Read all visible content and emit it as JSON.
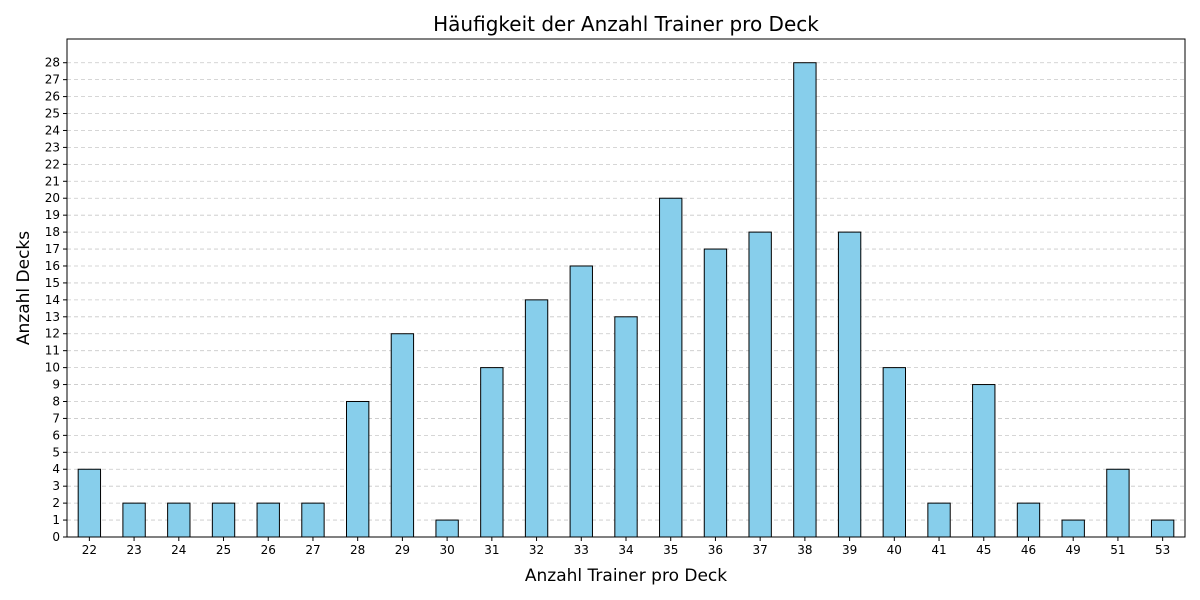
{
  "chart_data": {
    "type": "bar",
    "title": "Häufigkeit der Anzahl Trainer pro Deck",
    "xlabel": "Anzahl Trainer pro Deck",
    "ylabel": "Anzahl Decks",
    "categories": [
      "22",
      "23",
      "24",
      "25",
      "26",
      "27",
      "28",
      "29",
      "30",
      "31",
      "32",
      "33",
      "34",
      "35",
      "36",
      "37",
      "38",
      "39",
      "40",
      "41",
      "45",
      "46",
      "49",
      "51",
      "53"
    ],
    "values": [
      4,
      2,
      2,
      2,
      2,
      2,
      8,
      12,
      1,
      10,
      14,
      16,
      13,
      20,
      17,
      18,
      28,
      18,
      10,
      2,
      9,
      2,
      1,
      4,
      1
    ],
    "ylim": [
      0,
      29.4
    ],
    "yticks": [
      0,
      1,
      2,
      3,
      4,
      5,
      6,
      7,
      8,
      9,
      10,
      11,
      12,
      13,
      14,
      15,
      16,
      17,
      18,
      19,
      20,
      21,
      22,
      23,
      24,
      25,
      26,
      27,
      28
    ],
    "grid": "y-dashed",
    "colors": {
      "bar": "#87ceeb",
      "edge": "#000000",
      "grid": "#c8c8c8"
    }
  }
}
